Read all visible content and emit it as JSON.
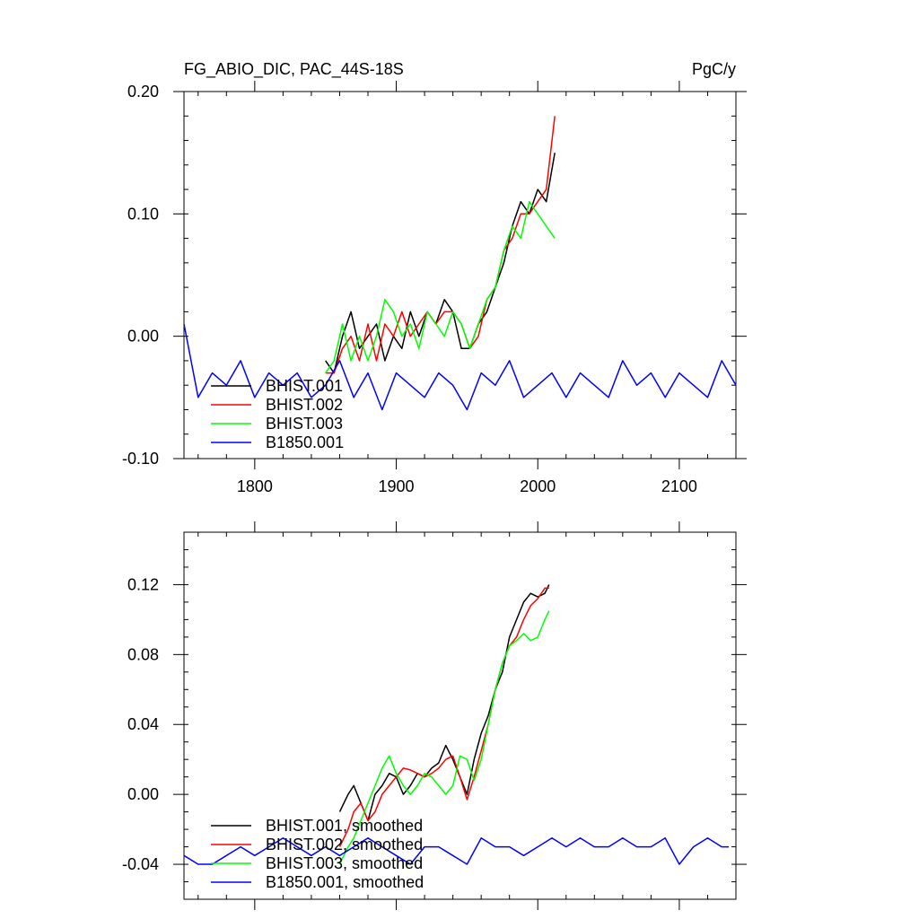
{
  "chart_data": [
    {
      "type": "line",
      "title": "FG_ABIO_DIC, PAC_44S-18S",
      "units": "PgC/y",
      "xlabel": "",
      "ylabel": "",
      "xlim": [
        1750,
        2140
      ],
      "ylim": [
        -0.1,
        0.2
      ],
      "xticks": [
        1800,
        1900,
        2000,
        2100
      ],
      "xtick_labels": [
        "1800",
        "1900",
        "2000",
        "2100"
      ],
      "yticks": [
        -0.1,
        0.0,
        0.1,
        0.2
      ],
      "ytick_labels": [
        "-0.10",
        "0.00",
        "0.10",
        "0.20"
      ],
      "legend_position": "bottom-left",
      "series": [
        {
          "name": "BHIST.001",
          "color": "#000000",
          "x": [
            1850,
            1856,
            1862,
            1868,
            1874,
            1880,
            1886,
            1892,
            1898,
            1904,
            1910,
            1916,
            1922,
            1928,
            1934,
            1940,
            1946,
            1952,
            1958,
            1964,
            1970,
            1976,
            1982,
            1988,
            1994,
            2000,
            2006,
            2012
          ],
          "y": [
            -0.02,
            -0.03,
            0.0,
            0.02,
            -0.01,
            0.0,
            0.01,
            -0.02,
            0.0,
            -0.01,
            0.02,
            0.0,
            0.02,
            0.01,
            0.03,
            0.02,
            -0.01,
            -0.01,
            0.01,
            0.02,
            0.04,
            0.06,
            0.09,
            0.11,
            0.1,
            0.12,
            0.11,
            0.15
          ]
        },
        {
          "name": "BHIST.002",
          "color": "#ff0000",
          "x": [
            1850,
            1856,
            1862,
            1868,
            1874,
            1880,
            1886,
            1892,
            1898,
            1904,
            1910,
            1916,
            1922,
            1928,
            1934,
            1940,
            1946,
            1952,
            1958,
            1964,
            1970,
            1976,
            1982,
            1988,
            1994,
            2000,
            2006,
            2012
          ],
          "y": [
            -0.03,
            -0.03,
            -0.01,
            0.0,
            -0.02,
            0.01,
            -0.02,
            0.01,
            0.0,
            0.02,
            0.0,
            0.01,
            0.02,
            0.01,
            0.02,
            0.02,
            0.01,
            -0.01,
            0.0,
            0.03,
            0.04,
            0.07,
            0.08,
            0.1,
            0.1,
            0.11,
            0.12,
            0.18
          ]
        },
        {
          "name": "BHIST.003",
          "color": "#00ff00",
          "x": [
            1850,
            1856,
            1862,
            1868,
            1874,
            1880,
            1886,
            1892,
            1898,
            1904,
            1910,
            1916,
            1922,
            1928,
            1934,
            1940,
            1946,
            1952,
            1958,
            1964,
            1970,
            1976,
            1982,
            1988,
            1994,
            2000,
            2006,
            2012
          ],
          "y": [
            -0.03,
            -0.02,
            0.01,
            -0.02,
            0.0,
            -0.02,
            0.0,
            0.03,
            0.02,
            0.0,
            0.01,
            -0.01,
            0.02,
            0.01,
            0.0,
            0.02,
            0.01,
            -0.01,
            0.01,
            0.03,
            0.04,
            0.07,
            0.09,
            0.08,
            0.11,
            0.1,
            0.09,
            0.08
          ]
        },
        {
          "name": "B1850.001",
          "color": "#0000ff",
          "x": [
            1750,
            1760,
            1770,
            1780,
            1790,
            1800,
            1810,
            1820,
            1830,
            1840,
            1850,
            1860,
            1870,
            1880,
            1890,
            1900,
            1910,
            1920,
            1930,
            1940,
            1950,
            1960,
            1970,
            1980,
            1990,
            2000,
            2010,
            2020,
            2030,
            2040,
            2050,
            2060,
            2070,
            2080,
            2090,
            2100,
            2110,
            2120,
            2130,
            2140
          ],
          "y": [
            0.01,
            -0.05,
            -0.03,
            -0.04,
            -0.02,
            -0.05,
            -0.03,
            -0.04,
            -0.03,
            -0.05,
            -0.04,
            -0.02,
            -0.05,
            -0.03,
            -0.06,
            -0.03,
            -0.04,
            -0.05,
            -0.03,
            -0.04,
            -0.06,
            -0.03,
            -0.04,
            -0.02,
            -0.05,
            -0.04,
            -0.03,
            -0.05,
            -0.03,
            -0.04,
            -0.05,
            -0.02,
            -0.04,
            -0.03,
            -0.05,
            -0.03,
            -0.04,
            -0.05,
            -0.02,
            -0.04
          ]
        }
      ]
    },
    {
      "type": "line",
      "title": "",
      "xlabel": "",
      "ylabel": "",
      "xlim": [
        1750,
        2140
      ],
      "ylim": [
        -0.06,
        0.15
      ],
      "xticks": [
        1800,
        1900,
        2000,
        2100
      ],
      "xtick_labels": [
        "",
        "",
        "",
        ""
      ],
      "yticks": [
        -0.04,
        0.0,
        0.04,
        0.08,
        0.12
      ],
      "ytick_labels": [
        "-0.04",
        "0.00",
        "0.04",
        "0.08",
        "0.12"
      ],
      "legend_position": "bottom-left",
      "series": [
        {
          "name": "BHIST.001, smoothed",
          "color": "#000000",
          "x": [
            1860,
            1866,
            1870,
            1875,
            1880,
            1885,
            1890,
            1895,
            1900,
            1905,
            1910,
            1915,
            1920,
            1925,
            1930,
            1935,
            1940,
            1945,
            1950,
            1955,
            1960,
            1965,
            1970,
            1975,
            1980,
            1985,
            1990,
            1995,
            2000,
            2005,
            2008
          ],
          "y": [
            -0.01,
            0.0,
            0.005,
            -0.005,
            -0.015,
            0.0,
            0.005,
            0.012,
            0.01,
            0.0,
            0.005,
            0.012,
            0.01,
            0.015,
            0.018,
            0.028,
            0.02,
            0.01,
            0.0,
            0.02,
            0.035,
            0.045,
            0.06,
            0.07,
            0.09,
            0.1,
            0.11,
            0.115,
            0.113,
            0.115,
            0.12
          ]
        },
        {
          "name": "BHIST.002, smoothed",
          "color": "#ff0000",
          "x": [
            1860,
            1866,
            1870,
            1875,
            1880,
            1885,
            1890,
            1895,
            1900,
            1905,
            1910,
            1915,
            1920,
            1925,
            1930,
            1935,
            1940,
            1945,
            1950,
            1955,
            1960,
            1965,
            1970,
            1975,
            1980,
            1985,
            1990,
            1995,
            2000,
            2005,
            2008
          ],
          "y": [
            -0.03,
            -0.02,
            -0.01,
            -0.005,
            -0.015,
            -0.01,
            0.0,
            0.005,
            0.01,
            0.015,
            0.014,
            0.012,
            0.01,
            0.012,
            0.015,
            0.02,
            0.022,
            0.01,
            -0.003,
            0.01,
            0.025,
            0.04,
            0.06,
            0.075,
            0.085,
            0.09,
            0.1,
            0.108,
            0.112,
            0.118,
            0.118
          ]
        },
        {
          "name": "BHIST.003, smoothed",
          "color": "#00ff00",
          "x": [
            1860,
            1866,
            1870,
            1875,
            1880,
            1885,
            1890,
            1895,
            1900,
            1905,
            1910,
            1915,
            1920,
            1925,
            1930,
            1935,
            1940,
            1945,
            1950,
            1955,
            1960,
            1965,
            1970,
            1975,
            1980,
            1985,
            1990,
            1995,
            2000,
            2005,
            2008
          ],
          "y": [
            -0.04,
            -0.03,
            -0.025,
            -0.015,
            -0.005,
            0.005,
            0.015,
            0.022,
            0.012,
            0.005,
            0.0,
            0.005,
            0.012,
            0.01,
            0.005,
            0.0,
            0.005,
            0.022,
            0.02,
            0.008,
            0.02,
            0.04,
            0.06,
            0.075,
            0.085,
            0.088,
            0.092,
            0.088,
            0.09,
            0.1,
            0.105
          ]
        },
        {
          "name": "B1850.001, smoothed",
          "color": "#0000ff",
          "x": [
            1750,
            1760,
            1770,
            1780,
            1790,
            1800,
            1810,
            1820,
            1830,
            1840,
            1850,
            1860,
            1870,
            1880,
            1890,
            1900,
            1910,
            1920,
            1930,
            1940,
            1950,
            1960,
            1970,
            1980,
            1990,
            2000,
            2010,
            2020,
            2030,
            2040,
            2050,
            2060,
            2070,
            2080,
            2090,
            2100,
            2110,
            2120,
            2130,
            2135
          ],
          "y": [
            -0.035,
            -0.04,
            -0.04,
            -0.035,
            -0.03,
            -0.035,
            -0.03,
            -0.025,
            -0.03,
            -0.035,
            -0.03,
            -0.035,
            -0.03,
            -0.025,
            -0.03,
            -0.035,
            -0.04,
            -0.03,
            -0.03,
            -0.035,
            -0.04,
            -0.025,
            -0.03,
            -0.03,
            -0.035,
            -0.03,
            -0.025,
            -0.03,
            -0.025,
            -0.03,
            -0.03,
            -0.025,
            -0.03,
            -0.03,
            -0.025,
            -0.04,
            -0.03,
            -0.025,
            -0.03,
            -0.03
          ]
        }
      ]
    }
  ]
}
